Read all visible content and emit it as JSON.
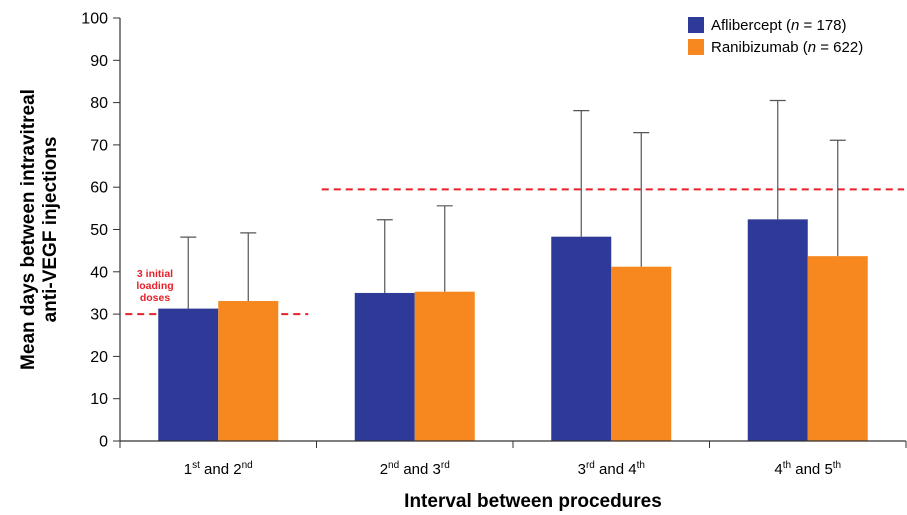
{
  "chart_data": {
    "type": "bar",
    "ylabel_lines": [
      "Mean days between intravitreal",
      "anti-VEGF injections"
    ],
    "xlabel": "Interval between procedures",
    "ylim": [
      0,
      100
    ],
    "yticks": [
      0,
      10,
      20,
      30,
      40,
      50,
      60,
      70,
      80,
      90,
      100
    ],
    "categories": [
      {
        "a": "1",
        "a_sup": "st",
        "mid": " and ",
        "b": "2",
        "b_sup": "nd"
      },
      {
        "a": "2",
        "a_sup": "nd",
        "mid": " and ",
        "b": "3",
        "b_sup": "rd"
      },
      {
        "a": "3",
        "a_sup": "rd",
        "mid": " and ",
        "b": "4",
        "b_sup": "th"
      },
      {
        "a": "4",
        "a_sup": "th",
        "mid": " and ",
        "b": "5",
        "b_sup": "th"
      }
    ],
    "series": [
      {
        "name": "Aflibercept",
        "n_label": "n",
        "n_value": " = 178",
        "color": "#2e3a97",
        "values": [
          31.3,
          35.0,
          48.3,
          52.4
        ],
        "error_upper": [
          48.2,
          52.3,
          78.1,
          80.5
        ]
      },
      {
        "name": "Ranibizumab",
        "n_label": "n",
        "n_value": " = 622",
        "color": "#f7881f",
        "values": [
          33.1,
          35.3,
          41.2,
          43.7
        ],
        "error_upper": [
          49.2,
          55.6,
          72.9,
          71.1
        ]
      }
    ],
    "reference_lines": [
      {
        "y": 30,
        "x_start_category": 0,
        "x_end_category": 0,
        "color": "#e8202a"
      },
      {
        "y": 59.5,
        "x_start_category": 1,
        "x_end_category": 3,
        "color": "#e8202a"
      }
    ],
    "annotation": {
      "lines": [
        "3 initial",
        "loading",
        "doses"
      ],
      "color": "#e8202a"
    },
    "legend_position": "top-right",
    "grid": false
  }
}
